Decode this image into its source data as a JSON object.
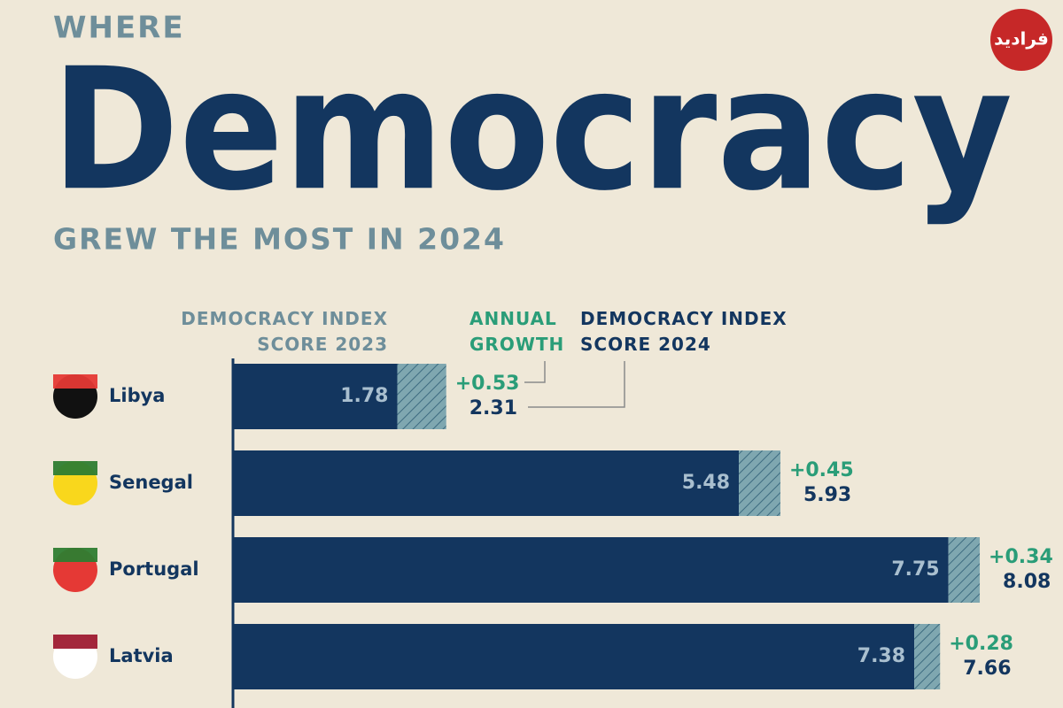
{
  "chart_data": {
    "type": "stacked-bar-horizontal",
    "pretitle": "WHERE",
    "title": "Democracy",
    "subtitle": "GREW THE MOST IN 2024",
    "watermark": "فرادید",
    "categories": [
      "Libya",
      "Senegal",
      "Portugal",
      "Latvia"
    ],
    "series": [
      {
        "name": "DEMOCRACY INDEX SCORE 2023",
        "color": "#13365f",
        "values": [
          1.78,
          5.48,
          7.75,
          7.38
        ]
      },
      {
        "name": "ANNUAL GROWTH",
        "color": "#2a9d78",
        "values": [
          0.53,
          0.45,
          0.34,
          0.28
        ],
        "value_labels": [
          "+0.53",
          "+0.45",
          "+0.34",
          "+0.28"
        ]
      }
    ],
    "totals": {
      "name": "DEMOCRACY INDEX SCORE 2024",
      "color": "#13365f",
      "values": [
        2.31,
        5.93,
        8.08,
        7.66
      ]
    }
  }
}
